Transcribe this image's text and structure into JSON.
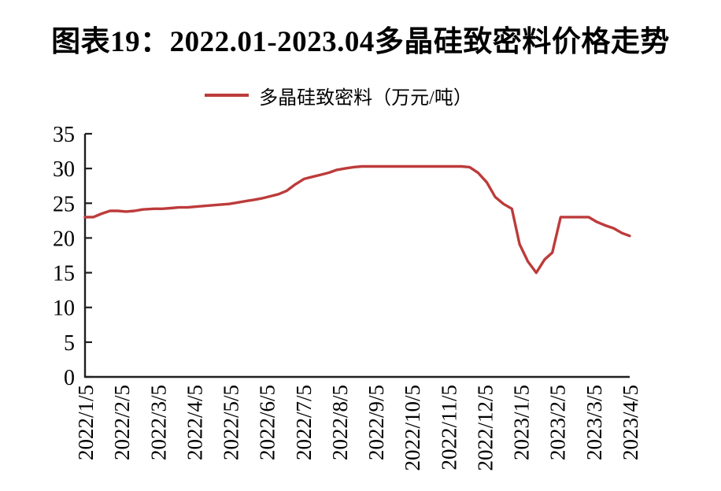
{
  "chart": {
    "title": "图表19：2022.01-2023.04多晶硅致密料价格走势",
    "legend": {
      "label": "多晶硅致密料（万元/吨）"
    },
    "colors": {
      "series": "#bd3b3b",
      "axis": "#1f1f1f",
      "text": "#000000"
    }
  },
  "chart_data": {
    "type": "line",
    "title": "图表19：2022.01-2023.04多晶硅致密料价格走势",
    "xlabel": "",
    "ylabel": "",
    "unit": "万元/吨",
    "ylim": [
      0,
      35
    ],
    "y_ticks": [
      0,
      5,
      10,
      15,
      20,
      25,
      30,
      35
    ],
    "x_tick_labels": [
      "2022/1/5",
      "2022/2/5",
      "2022/3/5",
      "2022/4/5",
      "2022/5/5",
      "2022/6/5",
      "2022/7/5",
      "2022/8/5",
      "2022/9/5",
      "2022/10/5",
      "2022/11/5",
      "2022/12/5",
      "2023/1/5",
      "2023/2/5",
      "2023/3/5",
      "2023/4/5"
    ],
    "grid": false,
    "legend_position": "top",
    "series": [
      {
        "name": "多晶硅致密料（万元/吨）",
        "color": "#bd3b3b",
        "points": [
          [
            "2022/1/5",
            23.0
          ],
          [
            "2022/1/12",
            23.0
          ],
          [
            "2022/1/19",
            23.5
          ],
          [
            "2022/1/26",
            23.9
          ],
          [
            "2022/2/2",
            23.9
          ],
          [
            "2022/2/9",
            23.8
          ],
          [
            "2022/2/16",
            23.9
          ],
          [
            "2022/2/23",
            24.1
          ],
          [
            "2022/3/2",
            24.2
          ],
          [
            "2022/3/9",
            24.2
          ],
          [
            "2022/3/16",
            24.3
          ],
          [
            "2022/3/23",
            24.4
          ],
          [
            "2022/3/30",
            24.4
          ],
          [
            "2022/4/6",
            24.5
          ],
          [
            "2022/4/13",
            24.6
          ],
          [
            "2022/4/20",
            24.7
          ],
          [
            "2022/4/27",
            24.8
          ],
          [
            "2022/5/4",
            24.9
          ],
          [
            "2022/5/11",
            25.1
          ],
          [
            "2022/5/18",
            25.3
          ],
          [
            "2022/5/25",
            25.5
          ],
          [
            "2022/6/1",
            25.7
          ],
          [
            "2022/6/8",
            26.0
          ],
          [
            "2022/6/15",
            26.3
          ],
          [
            "2022/6/22",
            26.8
          ],
          [
            "2022/6/29",
            27.7
          ],
          [
            "2022/7/6",
            28.5
          ],
          [
            "2022/7/13",
            28.8
          ],
          [
            "2022/7/20",
            29.1
          ],
          [
            "2022/7/27",
            29.4
          ],
          [
            "2022/8/3",
            29.8
          ],
          [
            "2022/8/10",
            30.0
          ],
          [
            "2022/8/17",
            30.2
          ],
          [
            "2022/8/24",
            30.3
          ],
          [
            "2022/8/31",
            30.3
          ],
          [
            "2022/9/7",
            30.3
          ],
          [
            "2022/9/14",
            30.3
          ],
          [
            "2022/9/21",
            30.3
          ],
          [
            "2022/9/28",
            30.3
          ],
          [
            "2022/10/5",
            30.3
          ],
          [
            "2022/10/12",
            30.3
          ],
          [
            "2022/10/19",
            30.3
          ],
          [
            "2022/10/26",
            30.3
          ],
          [
            "2022/11/2",
            30.3
          ],
          [
            "2022/11/9",
            30.3
          ],
          [
            "2022/11/16",
            30.3
          ],
          [
            "2022/11/23",
            30.2
          ],
          [
            "2022/11/30",
            29.4
          ],
          [
            "2022/12/7",
            28.0
          ],
          [
            "2022/12/14",
            25.9
          ],
          [
            "2022/12/21",
            24.9
          ],
          [
            "2022/12/28",
            24.2
          ],
          [
            "2023/1/4",
            19.1
          ],
          [
            "2023/1/11",
            16.6
          ],
          [
            "2023/1/18",
            15.0
          ],
          [
            "2023/1/25",
            16.9
          ],
          [
            "2023/2/1",
            17.9
          ],
          [
            "2023/2/8",
            23.0
          ],
          [
            "2023/2/15",
            23.0
          ],
          [
            "2023/2/22",
            23.0
          ],
          [
            "2023/3/1",
            23.0
          ],
          [
            "2023/3/8",
            22.3
          ],
          [
            "2023/3/15",
            21.8
          ],
          [
            "2023/3/22",
            21.4
          ],
          [
            "2023/3/29",
            20.7
          ],
          [
            "2023/4/5",
            20.3
          ]
        ]
      }
    ]
  }
}
